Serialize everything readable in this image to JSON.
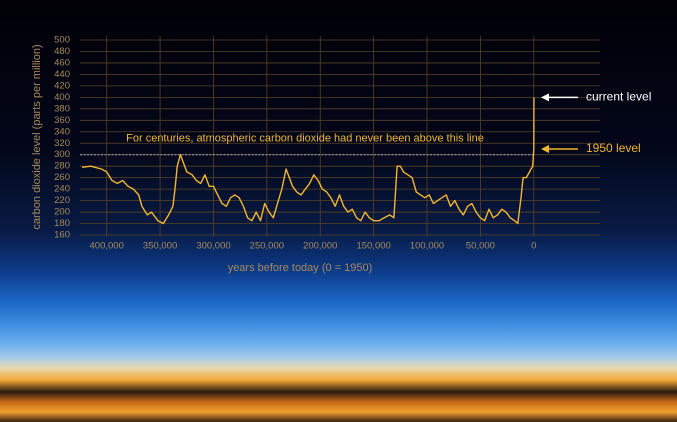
{
  "chart_data": {
    "type": "line",
    "xlabel": "years before today (0 = 1950)",
    "ylabel": "carbon dioxide level (parts per million)",
    "xlim": [
      425000,
      -62000
    ],
    "ylim": [
      160,
      500
    ],
    "xticks": [
      {
        "value": 400000,
        "label": "400,000"
      },
      {
        "value": 350000,
        "label": "350,000"
      },
      {
        "value": 300000,
        "label": "300,000"
      },
      {
        "value": 250000,
        "label": "250,000"
      },
      {
        "value": 200000,
        "label": "200,000"
      },
      {
        "value": 150000,
        "label": "150,000"
      },
      {
        "value": 100000,
        "label": "100,000"
      },
      {
        "value": 50000,
        "label": "50,000"
      },
      0
    ],
    "yticks": [
      160,
      180,
      200,
      220,
      240,
      260,
      280,
      300,
      320,
      340,
      360,
      380,
      400,
      420,
      440,
      460,
      480,
      500
    ],
    "grid": true,
    "color": "#f2b630",
    "x": [
      423000,
      415000,
      405000,
      400000,
      395000,
      390000,
      385000,
      380000,
      375000,
      370000,
      367000,
      362000,
      358000,
      352000,
      347000,
      342000,
      338000,
      336000,
      334000,
      331000,
      328000,
      325000,
      320000,
      316000,
      312000,
      308000,
      304000,
      300000,
      296000,
      292000,
      288000,
      284000,
      280000,
      276000,
      272000,
      268000,
      264000,
      260000,
      256000,
      252000,
      248000,
      244000,
      240000,
      236000,
      232000,
      229000,
      226000,
      222000,
      218000,
      214000,
      210000,
      206000,
      202000,
      198000,
      194000,
      190000,
      186000,
      182000,
      178000,
      174000,
      170000,
      166000,
      162000,
      158000,
      154000,
      150000,
      145000,
      140000,
      135000,
      131000,
      128000,
      125000,
      122000,
      118000,
      114000,
      110000,
      106000,
      102000,
      98000,
      94000,
      90000,
      86000,
      82000,
      78000,
      74000,
      70000,
      66000,
      62000,
      58000,
      54000,
      50000,
      46000,
      42000,
      38000,
      34000,
      30000,
      26000,
      22000,
      18000,
      15000,
      12000,
      10000,
      7000,
      4000,
      1000,
      0,
      -70
    ],
    "values": [
      278,
      280,
      275,
      270,
      255,
      250,
      255,
      245,
      240,
      230,
      210,
      195,
      200,
      185,
      180,
      195,
      210,
      240,
      280,
      300,
      285,
      270,
      265,
      255,
      250,
      265,
      245,
      245,
      230,
      215,
      210,
      225,
      230,
      225,
      210,
      190,
      185,
      200,
      185,
      215,
      200,
      190,
      215,
      240,
      275,
      260,
      245,
      235,
      230,
      240,
      250,
      265,
      255,
      240,
      235,
      225,
      210,
      230,
      210,
      200,
      205,
      190,
      185,
      200,
      190,
      185,
      185,
      190,
      195,
      190,
      280,
      280,
      270,
      265,
      260,
      235,
      230,
      225,
      230,
      215,
      220,
      225,
      230,
      210,
      220,
      205,
      195,
      210,
      215,
      200,
      190,
      185,
      205,
      190,
      195,
      205,
      200,
      190,
      185,
      180,
      225,
      260,
      260,
      270,
      280,
      310,
      400
    ],
    "reference_line": 300,
    "reference_text": "For centuries, atmospheric carbon dioxide had never been above this line",
    "annotations": [
      {
        "text": "current level",
        "value": 400
      },
      {
        "text": "1950 level",
        "value": 310
      }
    ]
  }
}
